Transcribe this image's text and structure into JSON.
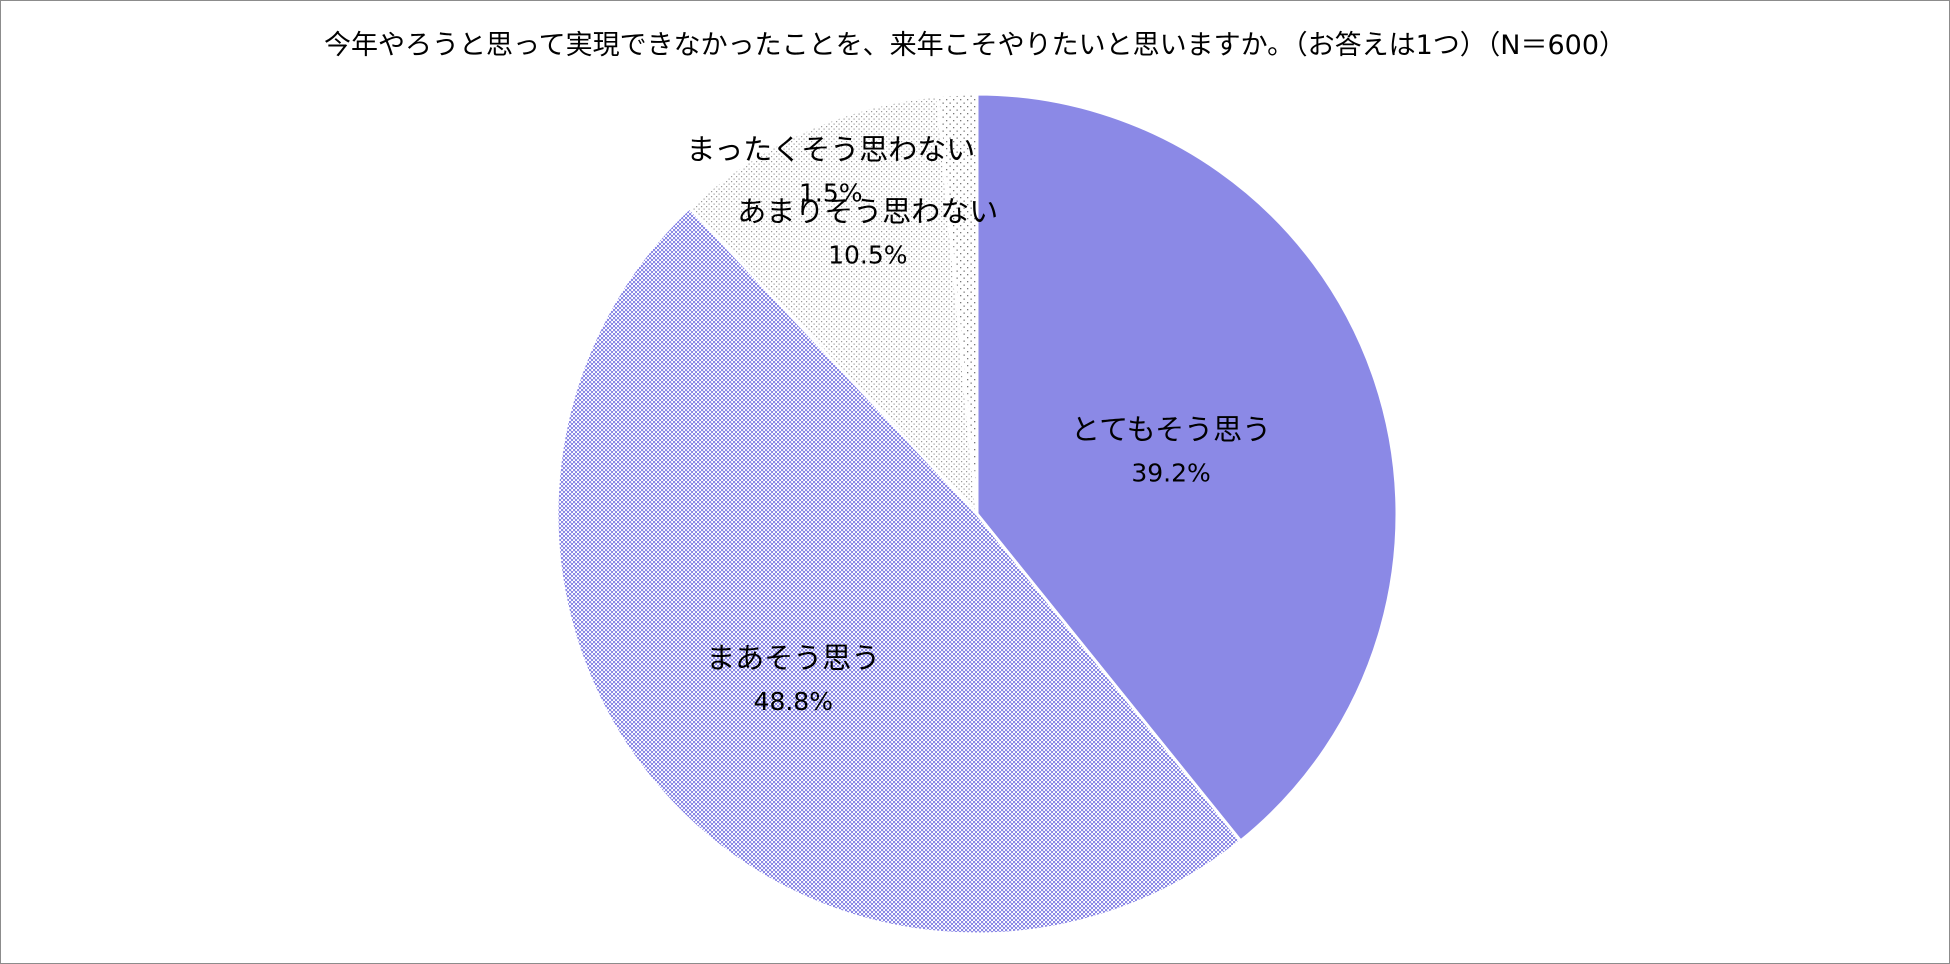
{
  "chart_data": {
    "type": "pie",
    "title": "今年やろうと思って実現できなかったことを、来年こそやりたいと思いますか。（お答えは1つ）（N＝600）",
    "unit": "%",
    "slices": [
      {
        "label": "とてもそう思う",
        "value": 39.2,
        "display": "39.2%",
        "color": "#8b89e6",
        "pattern": "solid"
      },
      {
        "label": "まあそう思う",
        "value": 48.8,
        "display": "48.8%",
        "color": "#8b89e6",
        "pattern": "fine-dots"
      },
      {
        "label": "あまりそう思わない",
        "value": 10.5,
        "display": "10.5%",
        "color": "#9a9a9a",
        "pattern": "light-dots"
      },
      {
        "label": "まったくそう思わない",
        "value": 1.5,
        "display": "1.5%",
        "color": "#777777",
        "pattern": "sparse-dots"
      }
    ],
    "start_angle": "12 o'clock",
    "direction": "clockwise",
    "legend": "none"
  }
}
